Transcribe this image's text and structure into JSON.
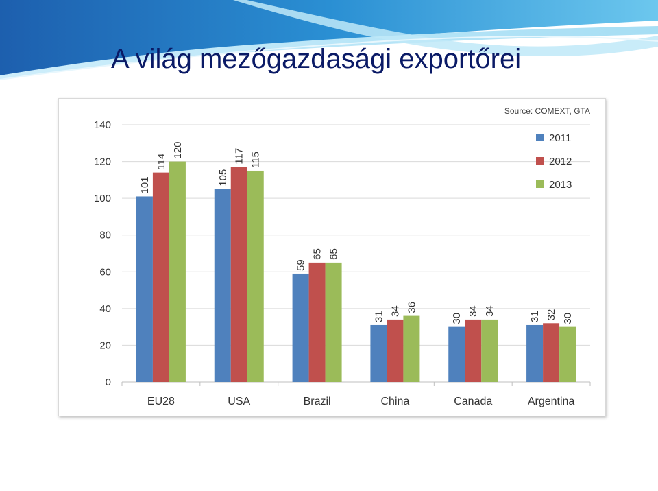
{
  "slide": {
    "title": "A világ mezőgazdasági exportőrei"
  },
  "colors": {
    "title": "#0a1a66",
    "banner_light": "#8fd6f2",
    "banner_mid": "#2f9fd8",
    "banner_dark": "#1a6fb8"
  },
  "chart_data": {
    "type": "bar",
    "source": "Source: COMEXT, GTA",
    "categories": [
      "EU28",
      "USA",
      "Brazil",
      "China",
      "Canada",
      "Argentina"
    ],
    "series": [
      {
        "name": "2011",
        "values": [
          101,
          105,
          59,
          31,
          30,
          31
        ],
        "color": "#4f81bd"
      },
      {
        "name": "2012",
        "values": [
          114,
          117,
          65,
          34,
          34,
          32
        ],
        "color": "#c0504d"
      },
      {
        "name": "2013",
        "values": [
          120,
          115,
          65,
          36,
          34,
          30
        ],
        "color": "#9bbb59"
      }
    ],
    "ylim": [
      0,
      140
    ],
    "yticks": [
      0,
      20,
      40,
      60,
      80,
      100,
      120,
      140
    ],
    "grid": true,
    "legend": "top-right",
    "title": "",
    "xlabel": "",
    "ylabel": ""
  }
}
